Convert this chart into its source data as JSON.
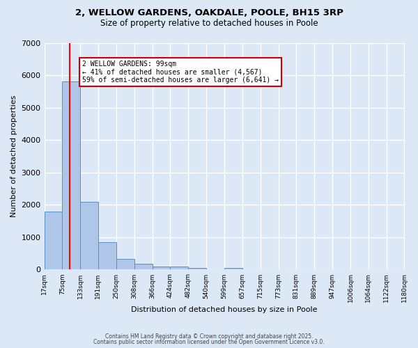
{
  "title_line1": "2, WELLOW GARDENS, OAKDALE, POOLE, BH15 3RP",
  "title_line2": "Size of property relative to detached houses in Poole",
  "xlabel": "Distribution of detached houses by size in Poole",
  "ylabel": "Number of detached properties",
  "bin_edges": [
    17,
    75,
    133,
    191,
    250,
    308,
    366,
    424,
    482,
    540,
    599,
    657,
    715,
    773,
    831,
    889,
    947,
    1006,
    1064,
    1122,
    1180
  ],
  "bar_heights": [
    1800,
    5800,
    2100,
    850,
    330,
    175,
    100,
    100,
    60,
    0,
    60,
    0,
    0,
    0,
    0,
    0,
    0,
    0,
    0,
    0
  ],
  "bar_color": "#aec6e8",
  "bar_edge_color": "#5a8fc0",
  "red_line_x": 99,
  "ylim": [
    0,
    7000
  ],
  "yticks": [
    0,
    1000,
    2000,
    3000,
    4000,
    5000,
    6000,
    7000
  ],
  "annotation_text": "2 WELLOW GARDENS: 99sqm\n← 41% of detached houses are smaller (4,567)\n59% of semi-detached houses are larger (6,641) →",
  "annotation_box_color": "#ffffff",
  "annotation_box_edge_color": "#cc0000",
  "footer_line1": "Contains HM Land Registry data © Crown copyright and database right 2025.",
  "footer_line2": "Contains public sector information licensed under the Open Government Licence v3.0.",
  "bg_color": "#dce8f5",
  "plot_bg_color": "#dce8f5",
  "grid_color": "#ffffff",
  "tick_labels": [
    "17sqm",
    "75sqm",
    "133sqm",
    "191sqm",
    "250sqm",
    "308sqm",
    "366sqm",
    "424sqm",
    "482sqm",
    "540sqm",
    "599sqm",
    "657sqm",
    "715sqm",
    "773sqm",
    "831sqm",
    "889sqm",
    "947sqm",
    "1006sqm",
    "1064sqm",
    "1122sqm",
    "1180sqm"
  ]
}
